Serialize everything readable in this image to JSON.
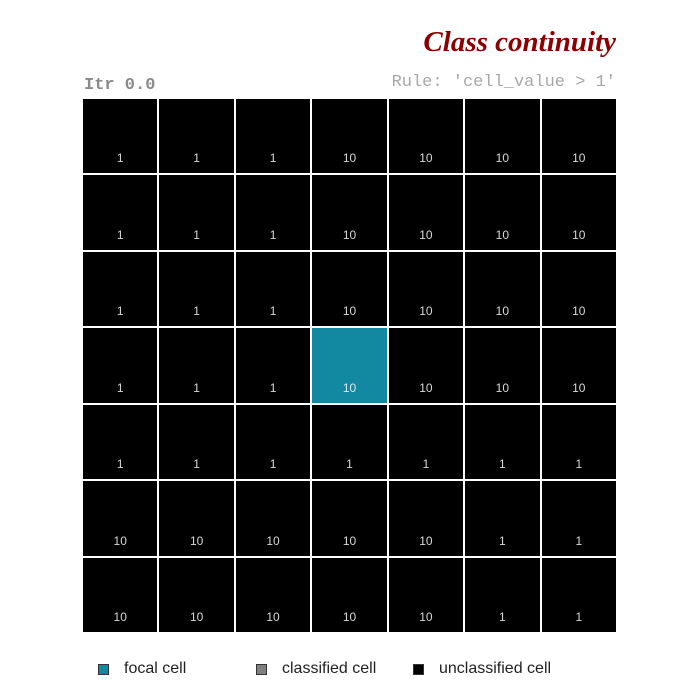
{
  "title": "Class continuity",
  "iteration_label": "Itr 0.0",
  "rule_label": "Rule: 'cell_value > 1'",
  "colors": {
    "focal": "#1289a0",
    "classified": "#808080",
    "unclassified": "#000000",
    "title": "#8b0000"
  },
  "grid": {
    "rows": [
      {
        "cells": [
          {
            "value": "1",
            "state": "unclassified"
          },
          {
            "value": "1",
            "state": "unclassified"
          },
          {
            "value": "1",
            "state": "unclassified"
          },
          {
            "value": "10",
            "state": "unclassified"
          },
          {
            "value": "10",
            "state": "unclassified"
          },
          {
            "value": "10",
            "state": "unclassified"
          },
          {
            "value": "10",
            "state": "unclassified"
          }
        ]
      },
      {
        "cells": [
          {
            "value": "1",
            "state": "unclassified"
          },
          {
            "value": "1",
            "state": "unclassified"
          },
          {
            "value": "1",
            "state": "unclassified"
          },
          {
            "value": "10",
            "state": "unclassified"
          },
          {
            "value": "10",
            "state": "unclassified"
          },
          {
            "value": "10",
            "state": "unclassified"
          },
          {
            "value": "10",
            "state": "unclassified"
          }
        ]
      },
      {
        "cells": [
          {
            "value": "1",
            "state": "unclassified"
          },
          {
            "value": "1",
            "state": "unclassified"
          },
          {
            "value": "1",
            "state": "unclassified"
          },
          {
            "value": "10",
            "state": "unclassified"
          },
          {
            "value": "10",
            "state": "unclassified"
          },
          {
            "value": "10",
            "state": "unclassified"
          },
          {
            "value": "10",
            "state": "unclassified"
          }
        ]
      },
      {
        "cells": [
          {
            "value": "1",
            "state": "unclassified"
          },
          {
            "value": "1",
            "state": "unclassified"
          },
          {
            "value": "1",
            "state": "unclassified"
          },
          {
            "value": "10",
            "state": "focal"
          },
          {
            "value": "10",
            "state": "unclassified"
          },
          {
            "value": "10",
            "state": "unclassified"
          },
          {
            "value": "10",
            "state": "unclassified"
          }
        ]
      },
      {
        "cells": [
          {
            "value": "1",
            "state": "unclassified"
          },
          {
            "value": "1",
            "state": "unclassified"
          },
          {
            "value": "1",
            "state": "unclassified"
          },
          {
            "value": "1",
            "state": "unclassified"
          },
          {
            "value": "1",
            "state": "unclassified"
          },
          {
            "value": "1",
            "state": "unclassified"
          },
          {
            "value": "1",
            "state": "unclassified"
          }
        ]
      },
      {
        "cells": [
          {
            "value": "10",
            "state": "unclassified"
          },
          {
            "value": "10",
            "state": "unclassified"
          },
          {
            "value": "10",
            "state": "unclassified"
          },
          {
            "value": "10",
            "state": "unclassified"
          },
          {
            "value": "10",
            "state": "unclassified"
          },
          {
            "value": "1",
            "state": "unclassified"
          },
          {
            "value": "1",
            "state": "unclassified"
          }
        ]
      },
      {
        "cells": [
          {
            "value": "10",
            "state": "unclassified"
          },
          {
            "value": "10",
            "state": "unclassified"
          },
          {
            "value": "10",
            "state": "unclassified"
          },
          {
            "value": "10",
            "state": "unclassified"
          },
          {
            "value": "10",
            "state": "unclassified"
          },
          {
            "value": "1",
            "state": "unclassified"
          },
          {
            "value": "1",
            "state": "unclassified"
          }
        ]
      }
    ]
  },
  "legend": {
    "items": [
      {
        "label": "focal cell",
        "color": "#1289a0"
      },
      {
        "label": "classified cell",
        "color": "#808080"
      },
      {
        "label": "unclassified cell",
        "color": "#000000"
      }
    ]
  }
}
